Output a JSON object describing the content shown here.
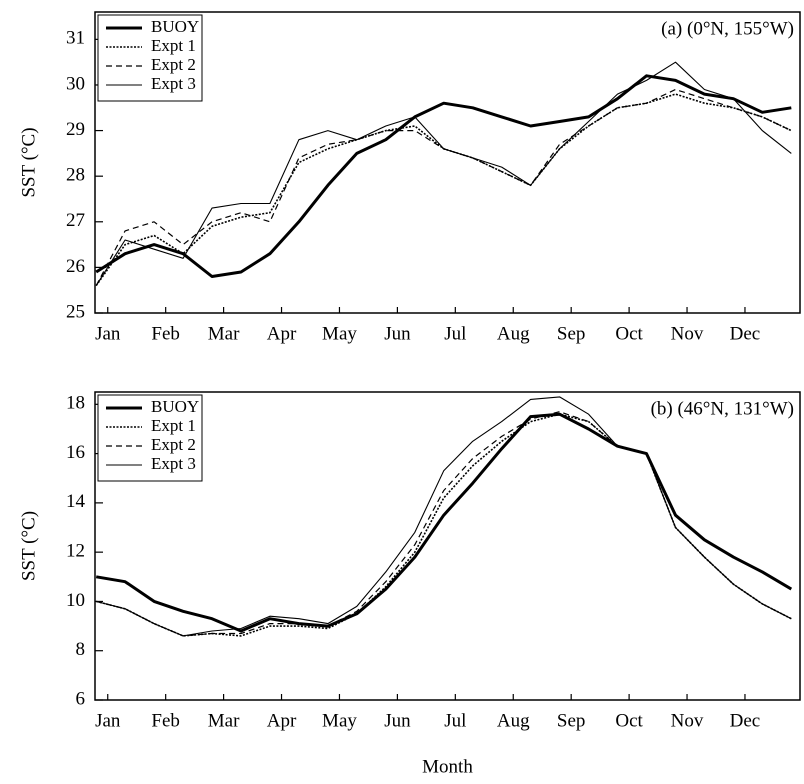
{
  "chart_data": [
    {
      "type": "line",
      "annotation": "(a)  (0°N, 155°W)",
      "y_label": "SST (°C)",
      "x": [
        0.8,
        1.3,
        1.8,
        2.3,
        2.8,
        3.3,
        3.8,
        4.3,
        4.8,
        5.3,
        5.8,
        6.3,
        6.8,
        7.3,
        7.8,
        8.3,
        8.8,
        9.3,
        9.8,
        10.3,
        10.8,
        11.3,
        11.8,
        12.3,
        12.8
      ],
      "xlim": [
        0.78,
        12.95
      ],
      "xticks": [
        {
          "value": 1,
          "label": "Jan"
        },
        {
          "value": 2,
          "label": "Feb"
        },
        {
          "value": 3,
          "label": "Mar"
        },
        {
          "value": 4,
          "label": "Apr"
        },
        {
          "value": 5,
          "label": "May"
        },
        {
          "value": 6,
          "label": "Jun"
        },
        {
          "value": 7,
          "label": "Jul"
        },
        {
          "value": 8,
          "label": "Aug"
        },
        {
          "value": 9,
          "label": "Sep"
        },
        {
          "value": 10,
          "label": "Oct"
        },
        {
          "value": 11,
          "label": "Nov"
        },
        {
          "value": 12,
          "label": "Dec"
        }
      ],
      "ylim": [
        25,
        31.6
      ],
      "yticks": [
        25,
        26,
        27,
        28,
        29,
        30,
        31
      ],
      "legend": "upper left",
      "series": [
        {
          "name": "BUOY",
          "color": "#000000",
          "style": "thick",
          "values": [
            25.9,
            26.3,
            26.5,
            26.3,
            25.8,
            25.9,
            26.3,
            27.0,
            27.8,
            28.5,
            28.8,
            29.3,
            29.6,
            29.5,
            29.3,
            29.1,
            29.2,
            29.3,
            29.7,
            30.2,
            30.1,
            29.8,
            29.7,
            29.4,
            29.5
          ]
        },
        {
          "name": "Expt 1",
          "color": "#000000",
          "style": "dotted",
          "values": [
            25.6,
            26.5,
            26.7,
            26.3,
            26.9,
            27.1,
            27.2,
            28.3,
            28.6,
            28.8,
            29.0,
            29.1,
            28.6,
            28.4,
            28.1,
            27.8,
            28.6,
            29.1,
            29.5,
            29.6,
            29.8,
            29.6,
            29.5,
            29.3,
            29.0
          ]
        },
        {
          "name": "Expt 2",
          "color": "#000000",
          "style": "dashed",
          "values": [
            25.6,
            26.8,
            27.0,
            26.5,
            27.0,
            27.2,
            27.0,
            28.4,
            28.7,
            28.8,
            29.0,
            29.0,
            28.6,
            28.4,
            28.1,
            27.8,
            28.7,
            29.1,
            29.5,
            29.6,
            29.9,
            29.7,
            29.5,
            29.3,
            29.0
          ]
        },
        {
          "name": "Expt 3",
          "color": "#000000",
          "style": "solid",
          "values": [
            25.6,
            26.6,
            26.4,
            26.2,
            27.3,
            27.4,
            27.4,
            28.8,
            29.0,
            28.8,
            29.1,
            29.3,
            28.6,
            28.4,
            28.2,
            27.8,
            28.6,
            29.2,
            29.8,
            30.1,
            30.5,
            29.9,
            29.7,
            29.0,
            28.5
          ]
        }
      ]
    },
    {
      "type": "line",
      "annotation": "(b)  (46°N, 131°W)",
      "y_label": "SST (°C)",
      "x_label": "Month",
      "x": [
        0.8,
        1.3,
        1.8,
        2.3,
        2.8,
        3.3,
        3.8,
        4.3,
        4.8,
        5.3,
        5.8,
        6.3,
        6.8,
        7.3,
        7.8,
        8.3,
        8.8,
        9.3,
        9.8,
        10.3,
        10.8,
        11.3,
        11.8,
        12.3,
        12.8
      ],
      "xlim": [
        0.78,
        12.95
      ],
      "xticks": [
        {
          "value": 1,
          "label": "Jan"
        },
        {
          "value": 2,
          "label": "Feb"
        },
        {
          "value": 3,
          "label": "Mar"
        },
        {
          "value": 4,
          "label": "Apr"
        },
        {
          "value": 5,
          "label": "May"
        },
        {
          "value": 6,
          "label": "Jun"
        },
        {
          "value": 7,
          "label": "Jul"
        },
        {
          "value": 8,
          "label": "Aug"
        },
        {
          "value": 9,
          "label": "Sep"
        },
        {
          "value": 10,
          "label": "Oct"
        },
        {
          "value": 11,
          "label": "Nov"
        },
        {
          "value": 12,
          "label": "Dec"
        }
      ],
      "ylim": [
        6,
        18.5
      ],
      "yticks": [
        6,
        8,
        10,
        12,
        14,
        16,
        18
      ],
      "legend": "upper left",
      "series": [
        {
          "name": "BUOY",
          "color": "#000000",
          "style": "thick",
          "values": [
            11.0,
            10.8,
            10.0,
            9.6,
            9.3,
            8.8,
            9.3,
            9.1,
            9.0,
            9.5,
            10.5,
            11.8,
            13.5,
            14.8,
            16.2,
            17.5,
            17.6,
            17.0,
            16.3,
            16.0,
            13.5,
            12.5,
            11.8,
            11.2,
            10.5
          ]
        },
        {
          "name": "Expt 1",
          "color": "#000000",
          "style": "dotted",
          "values": [
            10.0,
            9.7,
            9.1,
            8.6,
            8.7,
            8.6,
            9.0,
            9.0,
            8.9,
            9.5,
            10.6,
            12.0,
            14.2,
            15.5,
            16.5,
            17.3,
            17.6,
            17.3,
            16.3,
            16.0,
            13.0,
            11.8,
            10.7,
            9.9,
            9.3
          ]
        },
        {
          "name": "Expt 2",
          "color": "#000000",
          "style": "dashed",
          "values": [
            10.0,
            9.7,
            9.1,
            8.6,
            8.7,
            8.7,
            9.1,
            9.1,
            9.0,
            9.6,
            10.8,
            12.3,
            14.5,
            15.8,
            16.7,
            17.4,
            17.7,
            17.3,
            16.3,
            16.0,
            13.0,
            11.8,
            10.7,
            9.9,
            9.3
          ]
        },
        {
          "name": "Expt 3",
          "color": "#000000",
          "style": "solid",
          "values": [
            10.0,
            9.7,
            9.1,
            8.6,
            8.8,
            8.9,
            9.4,
            9.3,
            9.1,
            9.8,
            11.2,
            12.8,
            15.3,
            16.5,
            17.3,
            18.2,
            18.3,
            17.6,
            16.3,
            16.0,
            13.0,
            11.8,
            10.7,
            9.9,
            9.3
          ]
        }
      ]
    }
  ]
}
